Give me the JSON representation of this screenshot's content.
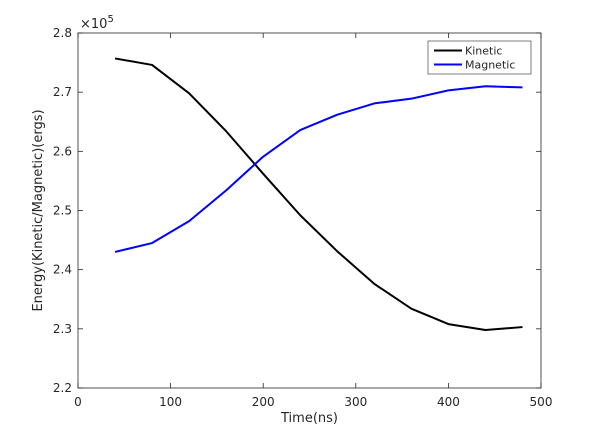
{
  "chart_data": {
    "type": "line",
    "title": "",
    "xlabel": "Time(ns)",
    "ylabel": "Energy(Kinetic/Magnetic)(ergs)",
    "xlim": [
      0,
      500
    ],
    "ylim": [
      2.2,
      2.8
    ],
    "xticks": [
      "0",
      "100",
      "200",
      "300",
      "400",
      "500"
    ],
    "yticks": [
      "2.2",
      "2.3",
      "2.4",
      "2.5",
      "2.6",
      "2.7",
      "2.8"
    ],
    "exponent_base": "×10",
    "exponent_power": "5",
    "grid": false,
    "legend_position": "top-right",
    "series": [
      {
        "name": "Kinetic",
        "color": "#000000",
        "x": [
          40,
          80,
          120,
          160,
          200,
          240,
          280,
          320,
          360,
          400,
          440,
          480
        ],
        "y": [
          2.757,
          2.746,
          2.698,
          2.634,
          2.562,
          2.492,
          2.431,
          2.376,
          2.334,
          2.308,
          2.298,
          2.303
        ]
      },
      {
        "name": "Magnetic",
        "color": "#0000ff",
        "x": [
          40,
          80,
          120,
          160,
          200,
          240,
          280,
          320,
          360,
          400,
          440,
          480
        ],
        "y": [
          2.43,
          2.445,
          2.482,
          2.534,
          2.591,
          2.636,
          2.662,
          2.681,
          2.689,
          2.703,
          2.71,
          2.708
        ]
      }
    ]
  }
}
